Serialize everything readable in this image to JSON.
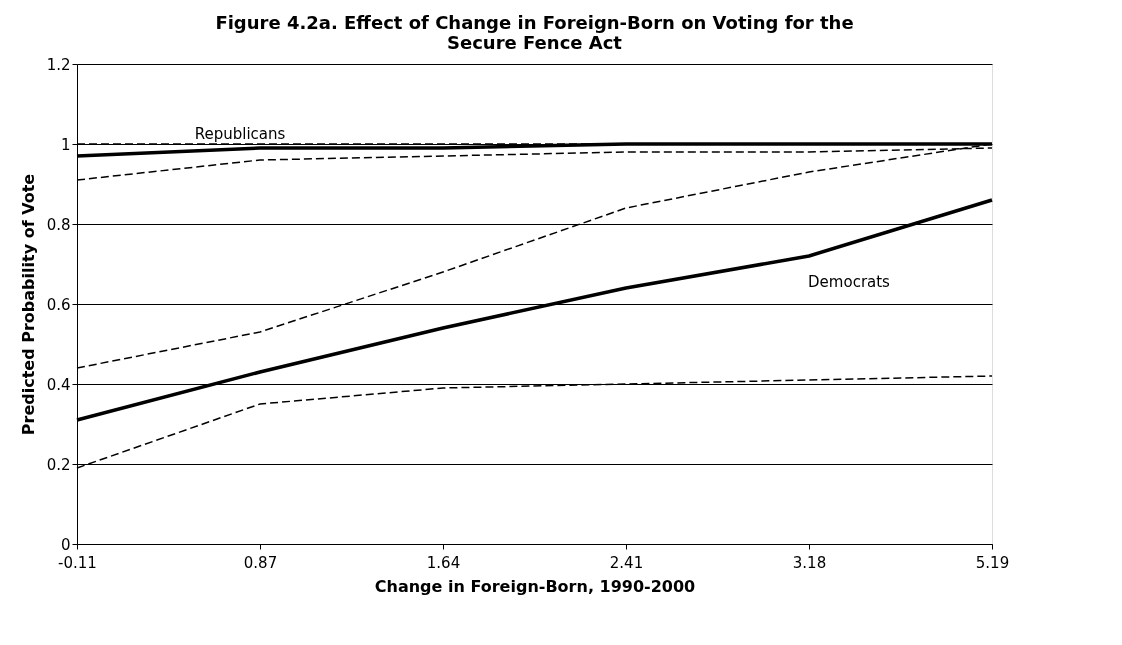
{
  "chart_data": {
    "type": "line",
    "title": [
      "Figure 4.2a. Effect of Change in Foreign-Born on Voting for the",
      "Secure Fence Act"
    ],
    "xlabel": "Change in Foreign-Born, 1990-2000",
    "ylabel": "Predicted Probability of Vote",
    "categories": [
      "-0.11",
      "0.87",
      "1.64",
      "2.41",
      "3.18",
      "5.19"
    ],
    "series": [
      {
        "name": "Republicans",
        "color": "#000000",
        "line_style": "solid",
        "values": [
          0.97,
          0.99,
          0.99,
          1.0,
          1.0,
          1.0
        ]
      },
      {
        "color": "#000000",
        "line_style": "dashed",
        "values": [
          1.0,
          1.0,
          1.0,
          1.0,
          1.0,
          1.0
        ]
      },
      {
        "color": "#000000",
        "line_style": "dashed",
        "values": [
          0.91,
          0.96,
          0.97,
          0.98,
          0.98,
          0.99
        ]
      },
      {
        "name": "Democrats",
        "color": "#000000",
        "line_style": "solid",
        "values": [
          0.31,
          0.43,
          0.54,
          0.64,
          0.72,
          0.86
        ]
      },
      {
        "color": "#000000",
        "line_style": "dashed",
        "values": [
          0.44,
          0.53,
          0.68,
          0.84,
          0.93,
          1.0
        ]
      },
      {
        "color": "#000000",
        "line_style": "dashed",
        "values": [
          0.19,
          0.35,
          0.39,
          0.4,
          0.41,
          0.42
        ]
      }
    ],
    "ylim": [
      0,
      1.2
    ],
    "yticks": [
      {
        "value": 0,
        "label": "0"
      },
      0.2,
      0.4,
      0.6,
      0.8,
      {
        "value": 1,
        "label": "1"
      },
      1.2
    ],
    "grid": "y",
    "marker": "none"
  }
}
